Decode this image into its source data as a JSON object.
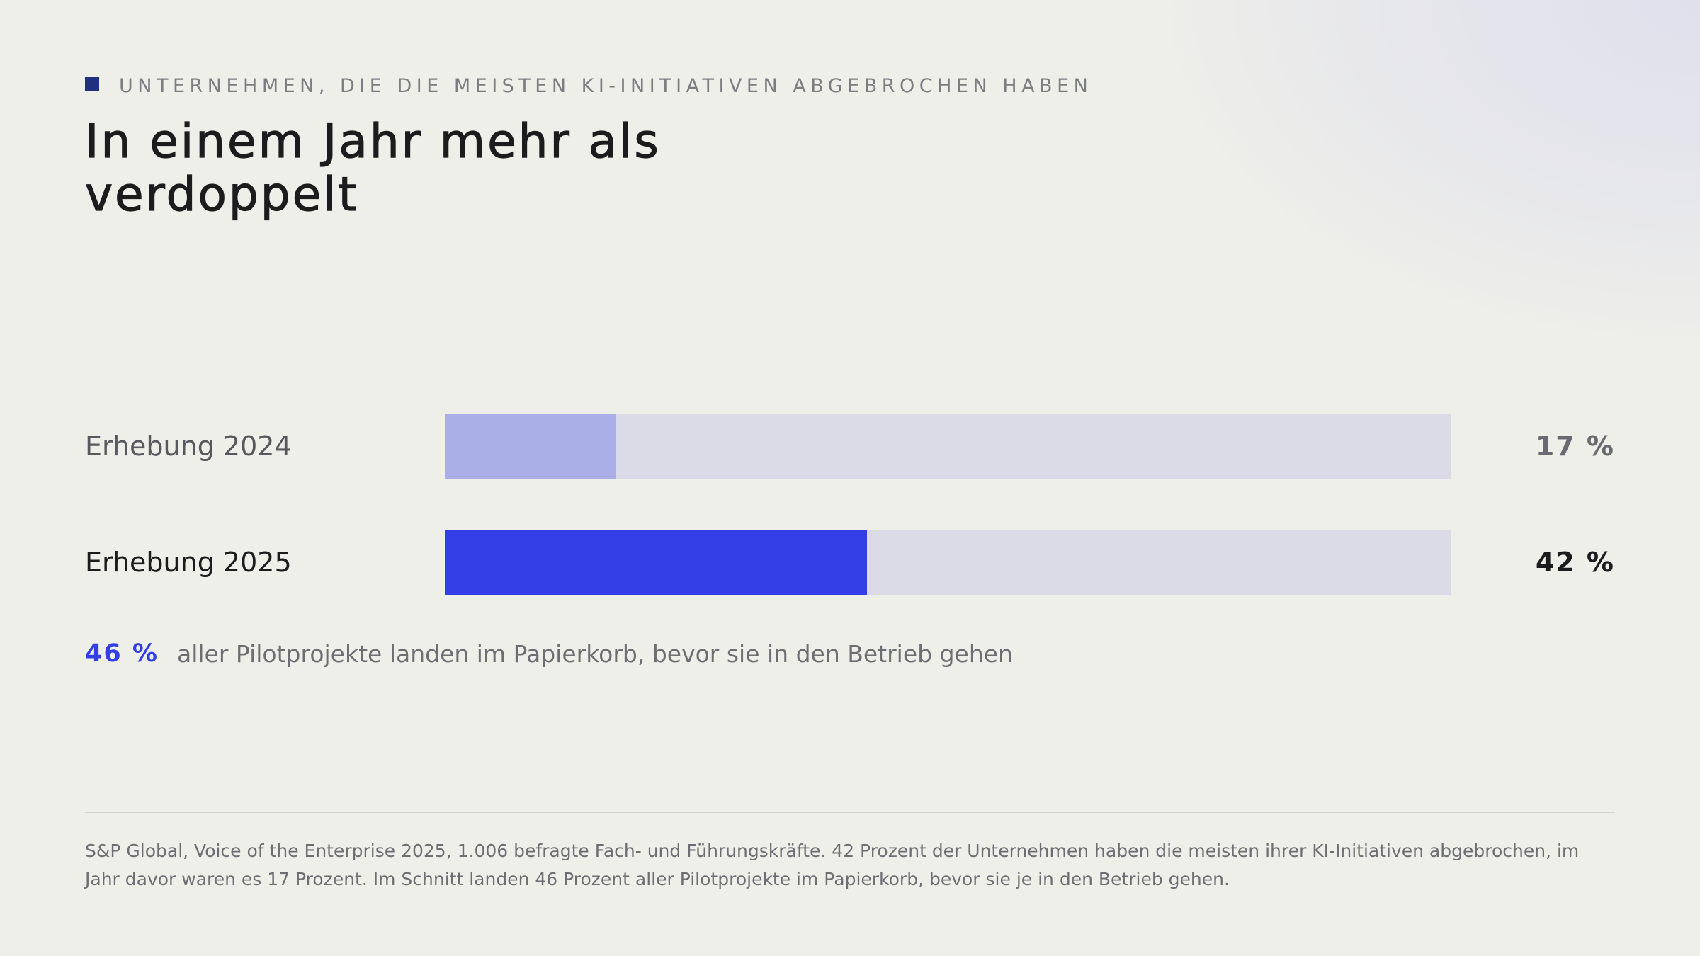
{
  "eyebrow": {
    "text": "UNTERNEHMEN, DIE DIE MEISTEN KI-INITIATIVEN ABGEBROCHEN HABEN",
    "square_color": "#20307e"
  },
  "title": "In einem Jahr mehr als verdoppelt",
  "chart_data": {
    "type": "bar",
    "orientation": "horizontal",
    "categories": [
      "Erhebung 2024",
      "Erhebung 2025"
    ],
    "values": [
      17,
      42
    ],
    "value_labels": [
      "17 %",
      "42 %"
    ],
    "xlim": [
      0,
      100
    ],
    "grid": false,
    "colors": {
      "track": "#dadbe7",
      "bars": [
        "#abafe8",
        "#333ee6"
      ]
    }
  },
  "note": {
    "value": "46 %",
    "text": "aller Pilotprojekte landen im Papierkorb, bevor sie in den Betrieb gehen",
    "value_color": "#333ee6"
  },
  "source": "S&P Global, Voice of the Enterprise 2025, 1.006 befragte Fach- und Führungskräfte. 42 Prozent der Unternehmen haben die meisten ihrer KI-Initiativen abgebrochen, im Jahr davor waren es 17 Prozent. Im Schnitt landen 46 Prozent aller Pilotprojekte im Papierkorb, bevor sie je in den Betrieb gehen."
}
